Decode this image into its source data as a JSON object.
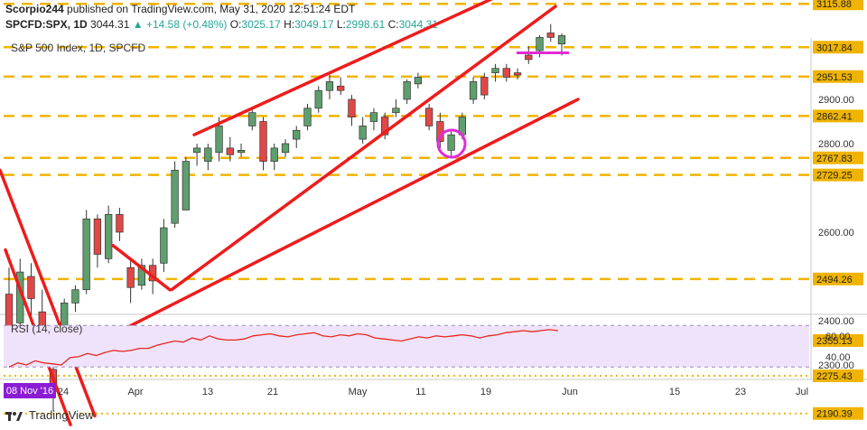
{
  "header": {
    "author": "Scorpio244",
    "published": "published on TradingView.com, May 31, 2020 12:51:24 EDT",
    "symbol": "SPCFD:SPX, 1D",
    "last": "3044.31",
    "change": "▲ +14.58 (+0.48%)",
    "o_label": "O:",
    "o_value": "3025.17",
    "h_label": "H:",
    "h_value": "3049.17",
    "l_label": "L:",
    "l_value": "2998.61",
    "c_label": "C:",
    "c_value": "3044.31"
  },
  "footer": {
    "brand": "TradingView"
  },
  "colors": {
    "up_candle": "#5f9e6e",
    "down_candle": "#e04848",
    "trendline": "#ee1c1c",
    "level": "#f0b400",
    "rsi_line": "#e8261d",
    "rsi_band": "#efe3fb",
    "circle": "#e22bd6",
    "date_badge": "#8b1cd6"
  },
  "chart_data": [
    {
      "type": "candlestick",
      "title": "S&P 500 Index, 1D, SPCFD",
      "ylim": [
        2150,
        3150
      ],
      "y_ticks": [
        {
          "label": "2900.00",
          "value": 2900
        },
        {
          "label": "2800.00",
          "value": 2800
        },
        {
          "label": "2600.00",
          "value": 2600
        },
        {
          "label": "2400.00",
          "value": 2400
        },
        {
          "label": "2300.00",
          "value": 2300
        }
      ],
      "level_tags": [
        {
          "label": "3115.88",
          "value": 3115.88
        },
        {
          "label": "3017.84",
          "value": 3017.84
        },
        {
          "label": "2951.53",
          "value": 2951.53
        },
        {
          "label": "2862.41",
          "value": 2862.41
        },
        {
          "label": "2767.83",
          "value": 2767.83
        },
        {
          "label": "2729.25",
          "value": 2729.25
        },
        {
          "label": "2494.26",
          "value": 2494.26
        },
        {
          "label": "2355.13",
          "value": 2355.13
        },
        {
          "label": "2275.43",
          "value": 2275.43
        },
        {
          "label": "2190.39",
          "value": 2190.39
        }
      ],
      "levels": [
        {
          "value": 3115.88,
          "style": "dashed"
        },
        {
          "value": 3017.84,
          "style": "dashed"
        },
        {
          "value": 2951.53,
          "style": "dashed"
        },
        {
          "value": 2862.41,
          "style": "dashed"
        },
        {
          "value": 2767.83,
          "style": "dashed"
        },
        {
          "value": 2729.25,
          "style": "dashed"
        },
        {
          "value": 2494.26,
          "style": "dashed"
        },
        {
          "value": 2355.13,
          "style": "dotted"
        },
        {
          "value": 2275.43,
          "style": "dotted"
        },
        {
          "value": 2190.39,
          "style": "dotted"
        }
      ],
      "x_labels": [
        "24",
        "Apr",
        "13",
        "21",
        "May",
        "11",
        "19",
        "Jun",
        "15",
        "23",
        "Jul"
      ],
      "x_badge": "08 Nov '16",
      "candles": [
        {
          "o": 2460,
          "h": 2520,
          "l": 2350,
          "c": 2380
        },
        {
          "o": 2395,
          "h": 2540,
          "l": 2330,
          "c": 2510
        },
        {
          "o": 2500,
          "h": 2530,
          "l": 2410,
          "c": 2450
        },
        {
          "o": 2420,
          "h": 2470,
          "l": 2305,
          "c": 2340
        },
        {
          "o": 2290,
          "h": 2350,
          "l": 2195,
          "c": 2240
        },
        {
          "o": 2345,
          "h": 2450,
          "l": 2330,
          "c": 2440
        },
        {
          "o": 2440,
          "h": 2480,
          "l": 2420,
          "c": 2470
        },
        {
          "o": 2470,
          "h": 2650,
          "l": 2460,
          "c": 2630
        },
        {
          "o": 2630,
          "h": 2640,
          "l": 2520,
          "c": 2550
        },
        {
          "o": 2540,
          "h": 2660,
          "l": 2530,
          "c": 2640
        },
        {
          "o": 2640,
          "h": 2655,
          "l": 2580,
          "c": 2600
        },
        {
          "o": 2520,
          "h": 2540,
          "l": 2440,
          "c": 2475
        },
        {
          "o": 2480,
          "h": 2540,
          "l": 2470,
          "c": 2525
        },
        {
          "o": 2525,
          "h": 2540,
          "l": 2460,
          "c": 2490
        },
        {
          "o": 2530,
          "h": 2630,
          "l": 2510,
          "c": 2610
        },
        {
          "o": 2620,
          "h": 2760,
          "l": 2610,
          "c": 2740
        },
        {
          "o": 2650,
          "h": 2770,
          "l": 2650,
          "c": 2760
        },
        {
          "o": 2780,
          "h": 2800,
          "l": 2750,
          "c": 2790
        },
        {
          "o": 2760,
          "h": 2800,
          "l": 2740,
          "c": 2790
        },
        {
          "o": 2780,
          "h": 2860,
          "l": 2760,
          "c": 2840
        },
        {
          "o": 2790,
          "h": 2815,
          "l": 2760,
          "c": 2775
        },
        {
          "o": 2780,
          "h": 2800,
          "l": 2770,
          "c": 2785
        },
        {
          "o": 2840,
          "h": 2880,
          "l": 2830,
          "c": 2870
        },
        {
          "o": 2850,
          "h": 2860,
          "l": 2740,
          "c": 2760
        },
        {
          "o": 2760,
          "h": 2800,
          "l": 2740,
          "c": 2790
        },
        {
          "o": 2780,
          "h": 2810,
          "l": 2770,
          "c": 2800
        },
        {
          "o": 2810,
          "h": 2840,
          "l": 2790,
          "c": 2830
        },
        {
          "o": 2840,
          "h": 2890,
          "l": 2830,
          "c": 2880
        },
        {
          "o": 2880,
          "h": 2930,
          "l": 2870,
          "c": 2920
        },
        {
          "o": 2920,
          "h": 2955,
          "l": 2900,
          "c": 2940
        },
        {
          "o": 2930,
          "h": 2950,
          "l": 2910,
          "c": 2920
        },
        {
          "o": 2900,
          "h": 2910,
          "l": 2840,
          "c": 2860
        },
        {
          "o": 2810,
          "h": 2860,
          "l": 2800,
          "c": 2840
        },
        {
          "o": 2850,
          "h": 2880,
          "l": 2830,
          "c": 2870
        },
        {
          "o": 2860,
          "h": 2870,
          "l": 2810,
          "c": 2820
        },
        {
          "o": 2870,
          "h": 2900,
          "l": 2860,
          "c": 2880
        },
        {
          "o": 2900,
          "h": 2945,
          "l": 2890,
          "c": 2940
        },
        {
          "o": 2935,
          "h": 2960,
          "l": 2925,
          "c": 2950
        },
        {
          "o": 2880,
          "h": 2890,
          "l": 2830,
          "c": 2840
        },
        {
          "o": 2850,
          "h": 2870,
          "l": 2790,
          "c": 2805
        },
        {
          "o": 2785,
          "h": 2830,
          "l": 2770,
          "c": 2820
        },
        {
          "o": 2820,
          "h": 2870,
          "l": 2810,
          "c": 2860
        },
        {
          "o": 2900,
          "h": 2950,
          "l": 2890,
          "c": 2940
        },
        {
          "o": 2950,
          "h": 2960,
          "l": 2900,
          "c": 2910
        },
        {
          "o": 2960,
          "h": 2980,
          "l": 2940,
          "c": 2970
        },
        {
          "o": 2970,
          "h": 2980,
          "l": 2940,
          "c": 2950
        },
        {
          "o": 2960,
          "h": 2970,
          "l": 2945,
          "c": 2955
        },
        {
          "o": 3000,
          "h": 3020,
          "l": 2980,
          "c": 2990
        },
        {
          "o": 3010,
          "h": 3045,
          "l": 2995,
          "c": 3040
        },
        {
          "o": 3050,
          "h": 3070,
          "l": 3030,
          "c": 3040
        },
        {
          "o": 3025,
          "h": 3049,
          "l": 2999,
          "c": 3044
        }
      ],
      "trendlines": [
        {
          "x1": 0,
          "y1": 2740,
          "x2": 105,
          "y2": 2185
        },
        {
          "x1": 6,
          "y1": 2560,
          "x2": 78,
          "y2": 2165
        },
        {
          "x1": 78,
          "y1": 2320,
          "x2": 640,
          "y2": 2900
        },
        {
          "x1": 190,
          "y1": 2470,
          "x2": 615,
          "y2": 3110
        },
        {
          "x1": 215,
          "y1": 2820,
          "x2": 580,
          "y2": 3160
        },
        {
          "x1": 125,
          "y1": 2570,
          "x2": 188,
          "y2": 2470
        }
      ],
      "support_marker": {
        "x1": 572,
        "x2": 630,
        "value": 3005
      },
      "highlight_circle": {
        "x": 500,
        "value": 2800
      }
    },
    {
      "type": "line",
      "title": "RSI (14, close)",
      "ylim": [
        25,
        75
      ],
      "y_ticks": [
        {
          "label": "60.00",
          "value": 60
        },
        {
          "label": "40.00",
          "value": 40
        }
      ],
      "band": [
        30,
        70
      ],
      "values": [
        30,
        34,
        32,
        36,
        34,
        33,
        32,
        39,
        40,
        43,
        41,
        44,
        46,
        45,
        46,
        48,
        48,
        51,
        53,
        55,
        54,
        58,
        56,
        60,
        57,
        56,
        56,
        57,
        60,
        61,
        62,
        60,
        59,
        61,
        62,
        63,
        60,
        59,
        61,
        60,
        62,
        61,
        58,
        57,
        56,
        55,
        57,
        59,
        58,
        60,
        59,
        60,
        61,
        60,
        58,
        60,
        61,
        63,
        64,
        65,
        64,
        65,
        66,
        65
      ]
    }
  ]
}
